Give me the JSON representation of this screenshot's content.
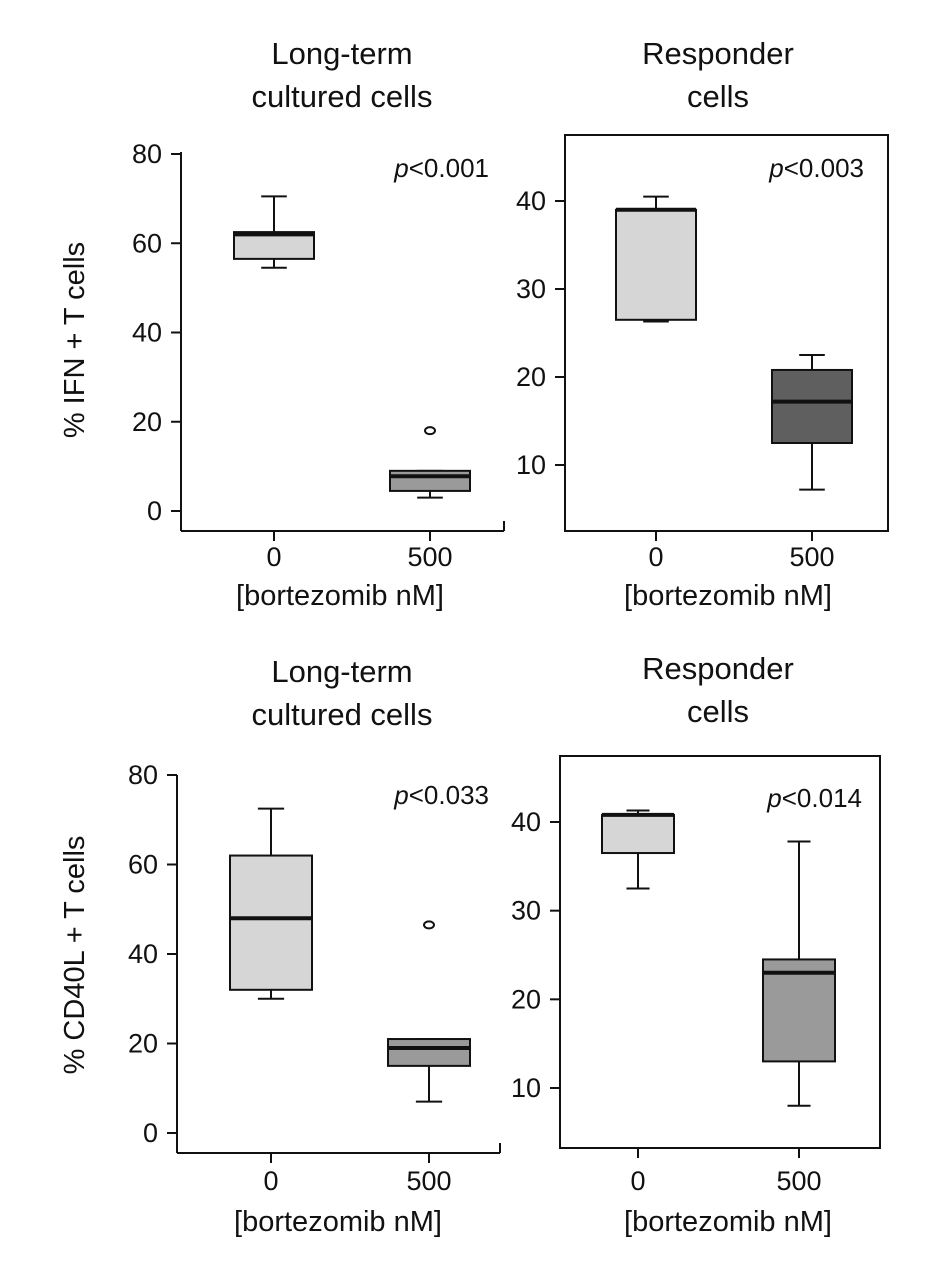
{
  "chart_data": [
    {
      "type": "box",
      "title": "Long-term cultured cells",
      "title_lines": [
        "Long-term",
        "cultured cells"
      ],
      "ylabel": "% IFN + T cells",
      "xlabel": "[bortezomib nM]",
      "categories": [
        "0",
        "500"
      ],
      "ylim": [
        -4,
        84
      ],
      "yticks": [
        0,
        20,
        40,
        60,
        80
      ],
      "annotation": {
        "prefix": "p",
        "text": "<0.001"
      },
      "boxes": [
        {
          "category": "0",
          "whisker_low": 54.5,
          "q1": 56.5,
          "median": 62,
          "q3": 62.5,
          "whisker_high": 70.5,
          "outliers": [],
          "color": "#d6d6d6"
        },
        {
          "category": "500",
          "whisker_low": 3,
          "q1": 4.5,
          "median": 7.8,
          "q3": 9,
          "whisker_high": 9,
          "outliers": [
            18
          ],
          "color": "#9a9a9a"
        }
      ]
    },
    {
      "type": "box",
      "title": "Responder cells",
      "title_lines": [
        "Responder",
        "cells"
      ],
      "ylabel": "",
      "xlabel": "[bortezomib nM]",
      "categories": [
        "0",
        "500"
      ],
      "ylim": [
        3,
        48
      ],
      "yticks": [
        10,
        20,
        30,
        40
      ],
      "annotation": {
        "prefix": "p",
        "text": "<0.003"
      },
      "boxes": [
        {
          "category": "0",
          "whisker_low": 26.3,
          "q1": 26.5,
          "median": 39,
          "q3": 39,
          "whisker_high": 40.5,
          "outliers": [],
          "color": "#d6d6d6"
        },
        {
          "category": "500",
          "whisker_low": 7.2,
          "q1": 12.5,
          "median": 17.2,
          "q3": 20.8,
          "whisker_high": 22.5,
          "outliers": [],
          "color": "#5f5f5f"
        }
      ]
    },
    {
      "type": "box",
      "title": "Long-term cultured cells",
      "title_lines": [
        "Long-term",
        "cultured cells"
      ],
      "ylabel": "% CD40L + T cells",
      "xlabel": "[bortezomib nM]",
      "categories": [
        "0",
        "500"
      ],
      "ylim": [
        -4,
        84
      ],
      "yticks": [
        0,
        20,
        40,
        60,
        80
      ],
      "annotation": {
        "prefix": "p",
        "text": "<0.033"
      },
      "boxes": [
        {
          "category": "0",
          "whisker_low": 30,
          "q1": 32,
          "median": 48,
          "q3": 62,
          "whisker_high": 72.5,
          "outliers": [],
          "color": "#d6d6d6"
        },
        {
          "category": "500",
          "whisker_low": 7,
          "q1": 15,
          "median": 19,
          "q3": 21,
          "whisker_high": 21,
          "outliers": [
            46.5
          ],
          "color": "#9a9a9a"
        }
      ]
    },
    {
      "type": "box",
      "title": "Responder cells",
      "title_lines": [
        "Responder",
        "cells"
      ],
      "ylabel": "",
      "xlabel": "[bortezomib nM]",
      "categories": [
        "0",
        "500"
      ],
      "ylim": [
        3,
        48
      ],
      "yticks": [
        10,
        20,
        30,
        40
      ],
      "annotation": {
        "prefix": "p",
        "text": "<0.014"
      },
      "boxes": [
        {
          "category": "0",
          "whisker_low": 32.5,
          "q1": 36.5,
          "median": 40.8,
          "q3": 40.8,
          "whisker_high": 41.3,
          "outliers": [],
          "color": "#d6d6d6"
        },
        {
          "category": "500",
          "whisker_low": 8,
          "q1": 13,
          "median": 23,
          "q3": 24.5,
          "whisker_high": 37.8,
          "outliers": [],
          "color": "#9a9a9a"
        }
      ]
    }
  ]
}
